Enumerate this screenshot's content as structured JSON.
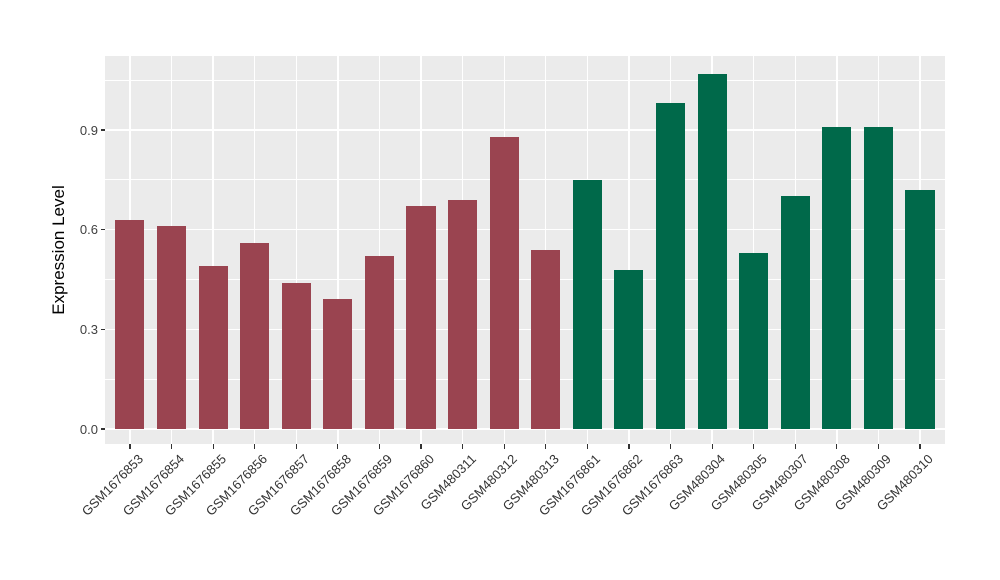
{
  "chart_data": {
    "type": "bar",
    "title": "",
    "xlabel": "",
    "ylabel": "Expression Level",
    "categories": [
      "GSM1676853",
      "GSM1676854",
      "GSM1676855",
      "GSM1676856",
      "GSM1676857",
      "GSM1676858",
      "GSM1676859",
      "GSM1676860",
      "GSM480311",
      "GSM480312",
      "GSM480313",
      "GSM1676861",
      "GSM1676862",
      "GSM1676863",
      "GSM480304",
      "GSM480305",
      "GSM480307",
      "GSM480308",
      "GSM480309",
      "GSM480310"
    ],
    "values": [
      0.63,
      0.61,
      0.49,
      0.56,
      0.44,
      0.39,
      0.52,
      0.67,
      0.69,
      0.88,
      0.54,
      0.75,
      0.48,
      0.98,
      1.07,
      0.53,
      0.7,
      0.91,
      0.91,
      0.72
    ],
    "bar_colors": [
      "#9A4450",
      "#9A4450",
      "#9A4450",
      "#9A4450",
      "#9A4450",
      "#9A4450",
      "#9A4450",
      "#9A4450",
      "#9A4450",
      "#9A4450",
      "#9A4450",
      "#00694A",
      "#00694A",
      "#00694A",
      "#00694A",
      "#00694A",
      "#00694A",
      "#00694A",
      "#00694A",
      "#00694A"
    ],
    "group_palette": {
      "left_group": "#9A4450",
      "right_group": "#00694A"
    },
    "y_ticks": [
      {
        "label": "0.0",
        "value": 0.0
      },
      {
        "label": "0.3",
        "value": 0.3
      },
      {
        "label": "0.6",
        "value": 0.6
      },
      {
        "label": "0.9",
        "value": 0.9
      }
    ],
    "y_minor": [
      0.15,
      0.45,
      0.75,
      1.05
    ],
    "ylim": [
      -0.05,
      1.13
    ],
    "grid": true,
    "legend": false,
    "panel_bg": "#EBEBEB",
    "grid_color": "#FFFFFF",
    "axis_text_color": "#333333"
  }
}
